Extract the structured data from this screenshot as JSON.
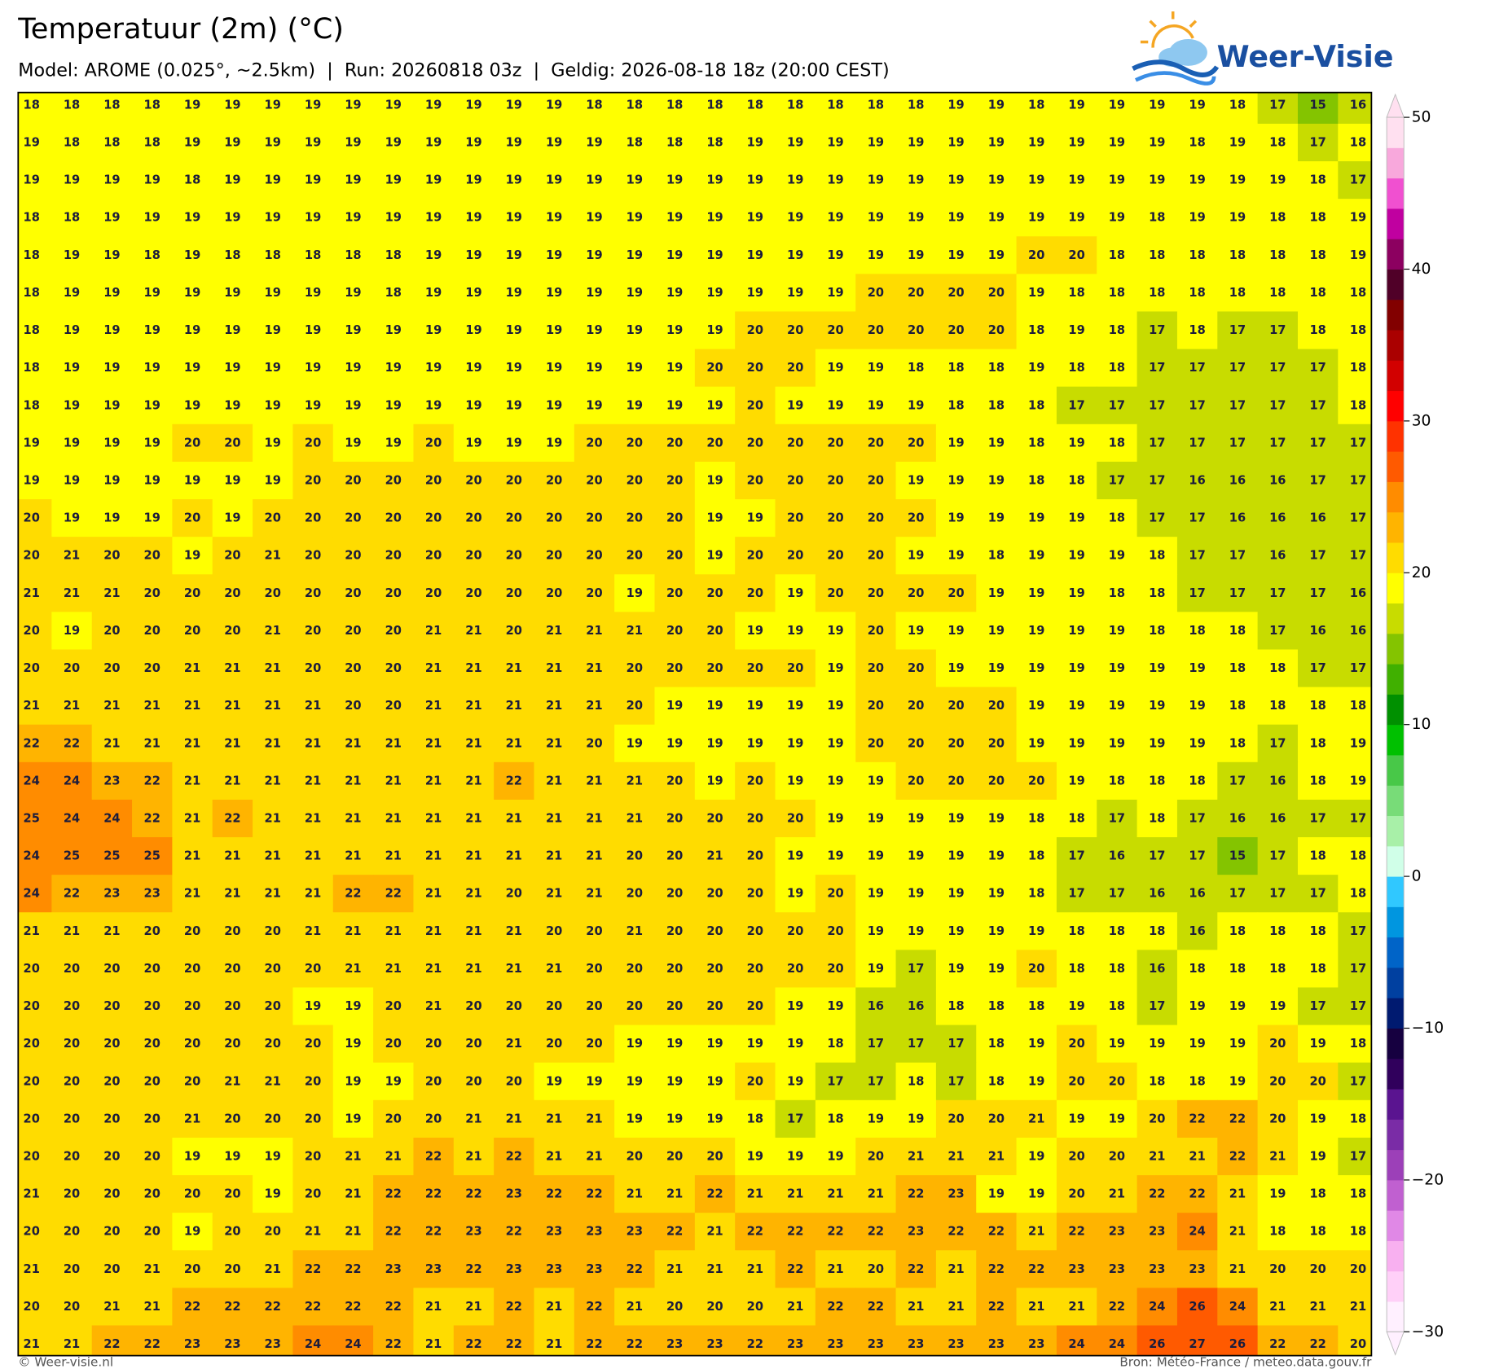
{
  "header": {
    "title": "Temperatuur (2m) (°C)",
    "subtitle": "Model: AROME (0.025°, ~2.5km)  |  Run: 20260818 03z  |  Geldig: 2026-08-18 18z (20:00 CEST)",
    "logo": "Weer-Visie"
  },
  "map": {
    "type": "grid",
    "values": [
      [
        18,
        18,
        18,
        18,
        19,
        19,
        19,
        19,
        19,
        19,
        19,
        19,
        19,
        19,
        18,
        18,
        18,
        18,
        18,
        18,
        18,
        18,
        18,
        19,
        19,
        18,
        19,
        19,
        19,
        19,
        18,
        17,
        15,
        16
      ],
      [
        19,
        18,
        18,
        18,
        19,
        19,
        19,
        19,
        19,
        19,
        19,
        19,
        19,
        19,
        19,
        18,
        18,
        18,
        19,
        19,
        19,
        19,
        19,
        19,
        19,
        19,
        19,
        19,
        19,
        18,
        19,
        18,
        17,
        18
      ],
      [
        19,
        19,
        19,
        19,
        18,
        19,
        19,
        19,
        19,
        19,
        19,
        19,
        19,
        19,
        19,
        19,
        19,
        19,
        19,
        19,
        19,
        19,
        19,
        19,
        19,
        19,
        19,
        19,
        19,
        19,
        19,
        19,
        18,
        17
      ],
      [
        18,
        18,
        19,
        19,
        19,
        19,
        19,
        19,
        19,
        19,
        19,
        19,
        19,
        19,
        19,
        19,
        19,
        19,
        19,
        19,
        19,
        19,
        19,
        19,
        19,
        19,
        19,
        19,
        18,
        19,
        19,
        18,
        18,
        19
      ],
      [
        18,
        19,
        19,
        18,
        19,
        18,
        18,
        18,
        18,
        18,
        19,
        19,
        19,
        19,
        19,
        19,
        19,
        19,
        19,
        19,
        19,
        19,
        19,
        19,
        19,
        20,
        20,
        18,
        18,
        18,
        18,
        18,
        18,
        19
      ],
      [
        18,
        19,
        19,
        19,
        19,
        19,
        19,
        19,
        19,
        18,
        19,
        19,
        19,
        19,
        19,
        19,
        19,
        19,
        19,
        19,
        19,
        20,
        20,
        20,
        20,
        19,
        18,
        18,
        18,
        18,
        18,
        18,
        18,
        18
      ],
      [
        18,
        19,
        19,
        19,
        19,
        19,
        19,
        19,
        19,
        19,
        19,
        19,
        19,
        19,
        19,
        19,
        19,
        19,
        20,
        20,
        20,
        20,
        20,
        20,
        20,
        18,
        19,
        18,
        17,
        18,
        17,
        17,
        18,
        18
      ],
      [
        18,
        19,
        19,
        19,
        19,
        19,
        19,
        19,
        19,
        19,
        19,
        19,
        19,
        19,
        19,
        19,
        19,
        20,
        20,
        20,
        19,
        19,
        18,
        18,
        18,
        19,
        18,
        18,
        17,
        17,
        17,
        17,
        17,
        18
      ],
      [
        18,
        19,
        19,
        19,
        19,
        19,
        19,
        19,
        19,
        19,
        19,
        19,
        19,
        19,
        19,
        19,
        19,
        19,
        20,
        19,
        19,
        19,
        19,
        18,
        18,
        18,
        17,
        17,
        17,
        17,
        17,
        17,
        17,
        18
      ],
      [
        19,
        19,
        19,
        19,
        20,
        20,
        19,
        20,
        19,
        19,
        20,
        19,
        19,
        19,
        20,
        20,
        20,
        20,
        20,
        20,
        20,
        20,
        20,
        19,
        19,
        18,
        19,
        18,
        17,
        17,
        17,
        17,
        17,
        17
      ],
      [
        19,
        19,
        19,
        19,
        19,
        19,
        19,
        20,
        20,
        20,
        20,
        20,
        20,
        20,
        20,
        20,
        20,
        19,
        20,
        20,
        20,
        20,
        19,
        19,
        19,
        18,
        18,
        17,
        17,
        16,
        16,
        16,
        17,
        17
      ],
      [
        20,
        19,
        19,
        19,
        20,
        19,
        20,
        20,
        20,
        20,
        20,
        20,
        20,
        20,
        20,
        20,
        20,
        19,
        19,
        20,
        20,
        20,
        20,
        19,
        19,
        19,
        19,
        18,
        17,
        17,
        16,
        16,
        16,
        17
      ],
      [
        20,
        21,
        20,
        20,
        19,
        20,
        21,
        20,
        20,
        20,
        20,
        20,
        20,
        20,
        20,
        20,
        20,
        19,
        20,
        20,
        20,
        20,
        19,
        19,
        18,
        19,
        19,
        19,
        18,
        17,
        17,
        16,
        17,
        17
      ],
      [
        21,
        21,
        21,
        20,
        20,
        20,
        20,
        20,
        20,
        20,
        20,
        20,
        20,
        20,
        20,
        19,
        20,
        20,
        20,
        19,
        20,
        20,
        20,
        20,
        19,
        19,
        19,
        18,
        18,
        17,
        17,
        17,
        17,
        16
      ],
      [
        20,
        19,
        20,
        20,
        20,
        20,
        21,
        20,
        20,
        20,
        21,
        21,
        20,
        21,
        21,
        21,
        20,
        20,
        19,
        19,
        19,
        20,
        19,
        19,
        19,
        19,
        19,
        19,
        18,
        18,
        18,
        17,
        16,
        16
      ],
      [
        20,
        20,
        20,
        20,
        21,
        21,
        21,
        20,
        20,
        20,
        21,
        21,
        21,
        21,
        21,
        20,
        20,
        20,
        20,
        20,
        19,
        20,
        20,
        19,
        19,
        19,
        19,
        19,
        19,
        19,
        18,
        18,
        17,
        17
      ],
      [
        21,
        21,
        21,
        21,
        21,
        21,
        21,
        21,
        20,
        20,
        21,
        21,
        21,
        21,
        21,
        20,
        19,
        19,
        19,
        19,
        19,
        20,
        20,
        20,
        20,
        19,
        19,
        19,
        19,
        19,
        18,
        18,
        18,
        18
      ],
      [
        22,
        22,
        21,
        21,
        21,
        21,
        21,
        21,
        21,
        21,
        21,
        21,
        21,
        21,
        20,
        19,
        19,
        19,
        19,
        19,
        19,
        20,
        20,
        20,
        20,
        19,
        19,
        19,
        19,
        19,
        18,
        17,
        18,
        19
      ],
      [
        24,
        24,
        23,
        22,
        21,
        21,
        21,
        21,
        21,
        21,
        21,
        21,
        22,
        21,
        21,
        21,
        20,
        19,
        20,
        19,
        19,
        19,
        20,
        20,
        20,
        20,
        19,
        18,
        18,
        18,
        17,
        16,
        18,
        19
      ],
      [
        25,
        24,
        24,
        22,
        21,
        22,
        21,
        21,
        21,
        21,
        21,
        21,
        21,
        21,
        21,
        21,
        20,
        20,
        20,
        20,
        19,
        19,
        19,
        19,
        19,
        18,
        18,
        17,
        18,
        17,
        16,
        16,
        17,
        17
      ],
      [
        24,
        25,
        25,
        25,
        21,
        21,
        21,
        21,
        21,
        21,
        21,
        21,
        21,
        21,
        21,
        20,
        20,
        21,
        20,
        19,
        19,
        19,
        19,
        19,
        19,
        18,
        17,
        16,
        17,
        17,
        15,
        17,
        18,
        18
      ],
      [
        24,
        22,
        23,
        23,
        21,
        21,
        21,
        21,
        22,
        22,
        21,
        21,
        20,
        21,
        21,
        20,
        20,
        20,
        20,
        19,
        20,
        19,
        19,
        19,
        19,
        18,
        17,
        17,
        16,
        16,
        17,
        17,
        17,
        18
      ],
      [
        21,
        21,
        21,
        20,
        20,
        20,
        20,
        21,
        21,
        21,
        21,
        21,
        21,
        20,
        20,
        21,
        20,
        20,
        20,
        20,
        20,
        19,
        19,
        19,
        19,
        19,
        18,
        18,
        18,
        16,
        18,
        18,
        18,
        17
      ],
      [
        20,
        20,
        20,
        20,
        20,
        20,
        20,
        20,
        21,
        21,
        21,
        21,
        21,
        21,
        20,
        20,
        20,
        20,
        20,
        20,
        20,
        19,
        17,
        19,
        19,
        20,
        18,
        18,
        16,
        18,
        18,
        18,
        18,
        17
      ],
      [
        20,
        20,
        20,
        20,
        20,
        20,
        20,
        19,
        19,
        20,
        21,
        20,
        20,
        20,
        20,
        20,
        20,
        20,
        20,
        19,
        19,
        16,
        16,
        18,
        18,
        18,
        19,
        18,
        17,
        19,
        19,
        19,
        17,
        17
      ],
      [
        20,
        20,
        20,
        20,
        20,
        20,
        20,
        20,
        19,
        20,
        20,
        20,
        21,
        20,
        20,
        19,
        19,
        19,
        19,
        19,
        18,
        17,
        17,
        17,
        18,
        19,
        20,
        19,
        19,
        19,
        19,
        20,
        19,
        18
      ],
      [
        20,
        20,
        20,
        20,
        20,
        21,
        21,
        20,
        19,
        19,
        20,
        20,
        20,
        19,
        19,
        19,
        19,
        19,
        20,
        19,
        17,
        17,
        18,
        17,
        18,
        19,
        20,
        20,
        18,
        18,
        19,
        20,
        20,
        17
      ],
      [
        20,
        20,
        20,
        20,
        21,
        20,
        20,
        20,
        19,
        20,
        20,
        21,
        21,
        21,
        21,
        19,
        19,
        19,
        18,
        17,
        18,
        19,
        19,
        20,
        20,
        21,
        19,
        19,
        20,
        22,
        22,
        20,
        19,
        18
      ],
      [
        20,
        20,
        20,
        20,
        19,
        19,
        19,
        20,
        21,
        21,
        22,
        21,
        22,
        21,
        21,
        20,
        20,
        20,
        19,
        19,
        19,
        20,
        21,
        21,
        21,
        19,
        20,
        20,
        21,
        21,
        22,
        21,
        19,
        17
      ],
      [
        21,
        20,
        20,
        20,
        20,
        20,
        19,
        20,
        21,
        22,
        22,
        22,
        23,
        22,
        22,
        21,
        21,
        22,
        21,
        21,
        21,
        21,
        22,
        23,
        19,
        19,
        20,
        21,
        22,
        22,
        21,
        19,
        18,
        18
      ],
      [
        20,
        20,
        20,
        20,
        19,
        20,
        20,
        21,
        21,
        22,
        22,
        23,
        22,
        23,
        23,
        23,
        22,
        21,
        22,
        22,
        22,
        22,
        23,
        22,
        22,
        21,
        22,
        23,
        23,
        24,
        21,
        18,
        18,
        18
      ],
      [
        21,
        20,
        20,
        21,
        20,
        20,
        21,
        22,
        22,
        23,
        23,
        22,
        23,
        23,
        23,
        22,
        21,
        21,
        21,
        22,
        21,
        20,
        22,
        21,
        22,
        22,
        23,
        23,
        23,
        23,
        21,
        20,
        20,
        20
      ],
      [
        20,
        20,
        21,
        21,
        22,
        22,
        22,
        22,
        22,
        22,
        21,
        21,
        22,
        21,
        22,
        21,
        20,
        20,
        20,
        21,
        22,
        22,
        21,
        21,
        22,
        21,
        21,
        22,
        24,
        26,
        24,
        21,
        21,
        21
      ],
      [
        21,
        21,
        22,
        22,
        23,
        23,
        23,
        24,
        24,
        22,
        21,
        22,
        22,
        21,
        22,
        22,
        23,
        23,
        22,
        23,
        23,
        23,
        23,
        23,
        23,
        23,
        24,
        24,
        26,
        27,
        26,
        22,
        22,
        20
      ]
    ]
  },
  "colorbar": {
    "lim": [
      -30,
      50
    ],
    "ticks": [
      {
        "value": -30,
        "label": "−30"
      },
      {
        "value": -20,
        "label": "−20"
      },
      {
        "value": -10,
        "label": "−10"
      },
      0,
      10,
      20,
      30,
      40,
      50
    ],
    "colors": [
      "#fff0ff",
      "#ffd0f8",
      "#f8b0f0",
      "#e088e6",
      "#c060d0",
      "#9c40b8",
      "#7a2ca6",
      "#5a1490",
      "#30005c",
      "#160040",
      "#001a70",
      "#0040a0",
      "#0064c8",
      "#0096e0",
      "#30c8ff",
      "#d0ffe8",
      "#a8f0a8",
      "#78dc78",
      "#48c848",
      "#00c000",
      "#009000",
      "#40b000",
      "#84c400",
      "#c8dc00",
      "#ffff00",
      "#ffdc00",
      "#ffb400",
      "#ff8c00",
      "#ff5a00",
      "#ff3200",
      "#ff0000",
      "#d20000",
      "#aa0000",
      "#820000",
      "#500028",
      "#8c0060",
      "#c000a0",
      "#f050d0",
      "#f8a8dc",
      "#ffe0f0"
    ]
  },
  "footer": {
    "left": "© Weer-visie.nl",
    "right": "Bron: Météo-France / meteo.data.gouv.fr"
  }
}
